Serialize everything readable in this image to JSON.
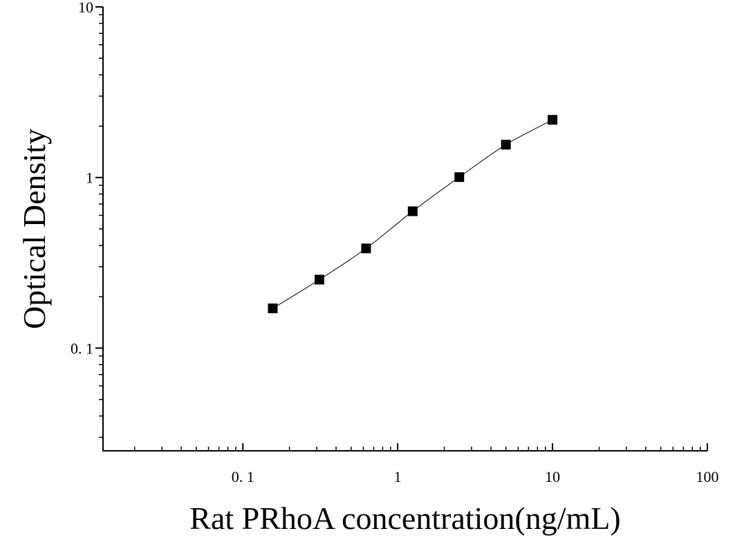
{
  "chart_data": {
    "type": "scatter",
    "xlabel": "Rat PRhoA concentration(ng/mL)",
    "ylabel": "Optical Density",
    "xscale": "log",
    "yscale": "log",
    "xlim": [
      0.0125,
      100
    ],
    "ylim": [
      0.025,
      10
    ],
    "x_ticks": [
      0.1,
      1,
      10,
      100
    ],
    "x_tick_labels": [
      "0. 1",
      "1",
      "10",
      "100"
    ],
    "y_ticks": [
      0.1,
      1,
      10
    ],
    "y_tick_labels": [
      "0. 1",
      "1",
      "10"
    ],
    "grid": false,
    "legend": "none",
    "marker": "square",
    "marker_color": "#000000",
    "series": [
      {
        "x": [
          0.156,
          0.3125,
          0.625,
          1.25,
          2.5,
          5,
          10
        ],
        "y": [
          0.171,
          0.252,
          0.384,
          0.634,
          1.005,
          1.558,
          2.178
        ],
        "fit_curve": true
      }
    ]
  }
}
